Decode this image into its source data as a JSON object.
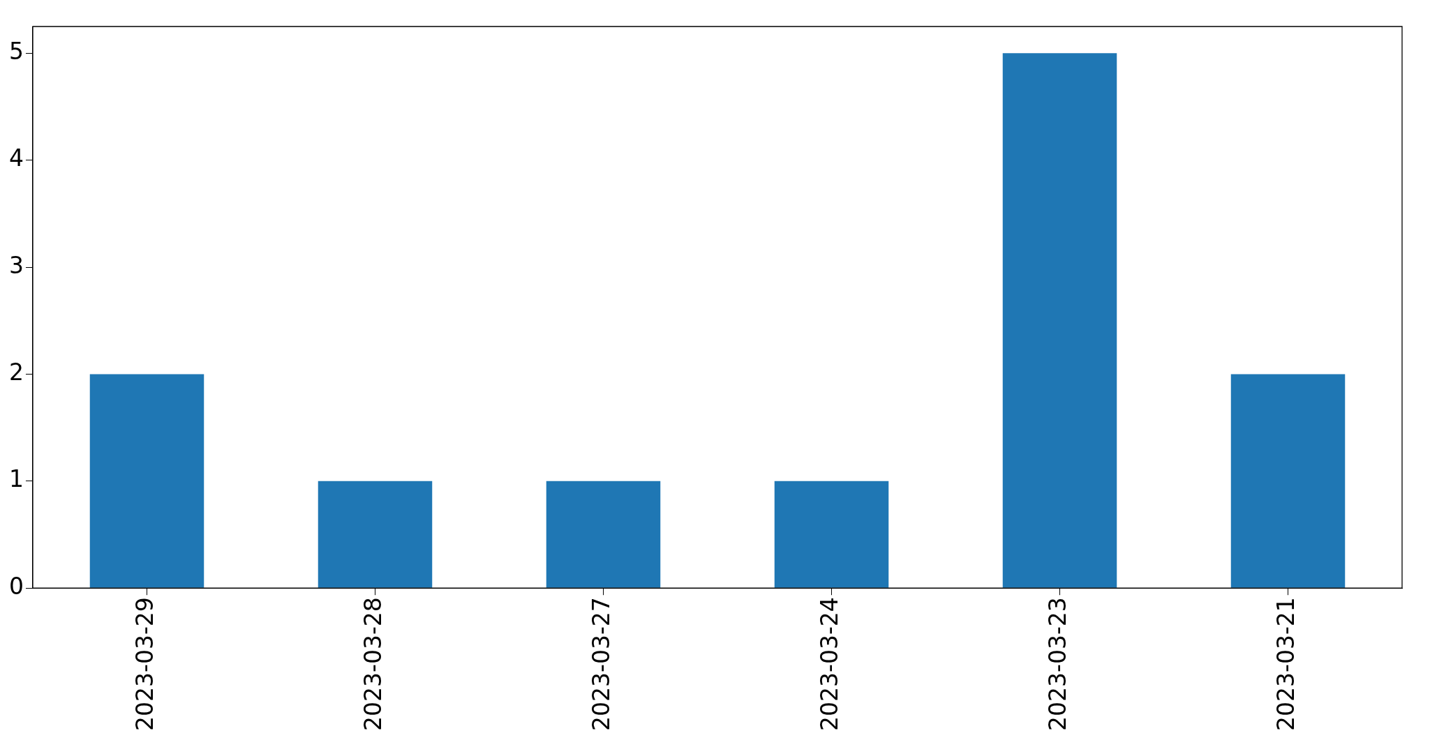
{
  "chart_data": {
    "type": "bar",
    "categories": [
      "2023-03-29",
      "2023-03-28",
      "2023-03-27",
      "2023-03-24",
      "2023-03-23",
      "2023-03-21"
    ],
    "values": [
      2,
      1,
      1,
      1,
      5,
      2
    ],
    "color": "#1f77b4",
    "ylim": [
      0,
      5.25
    ],
    "yticks": [
      0,
      1,
      2,
      3,
      4,
      5
    ],
    "grid": false,
    "legend": false
  }
}
